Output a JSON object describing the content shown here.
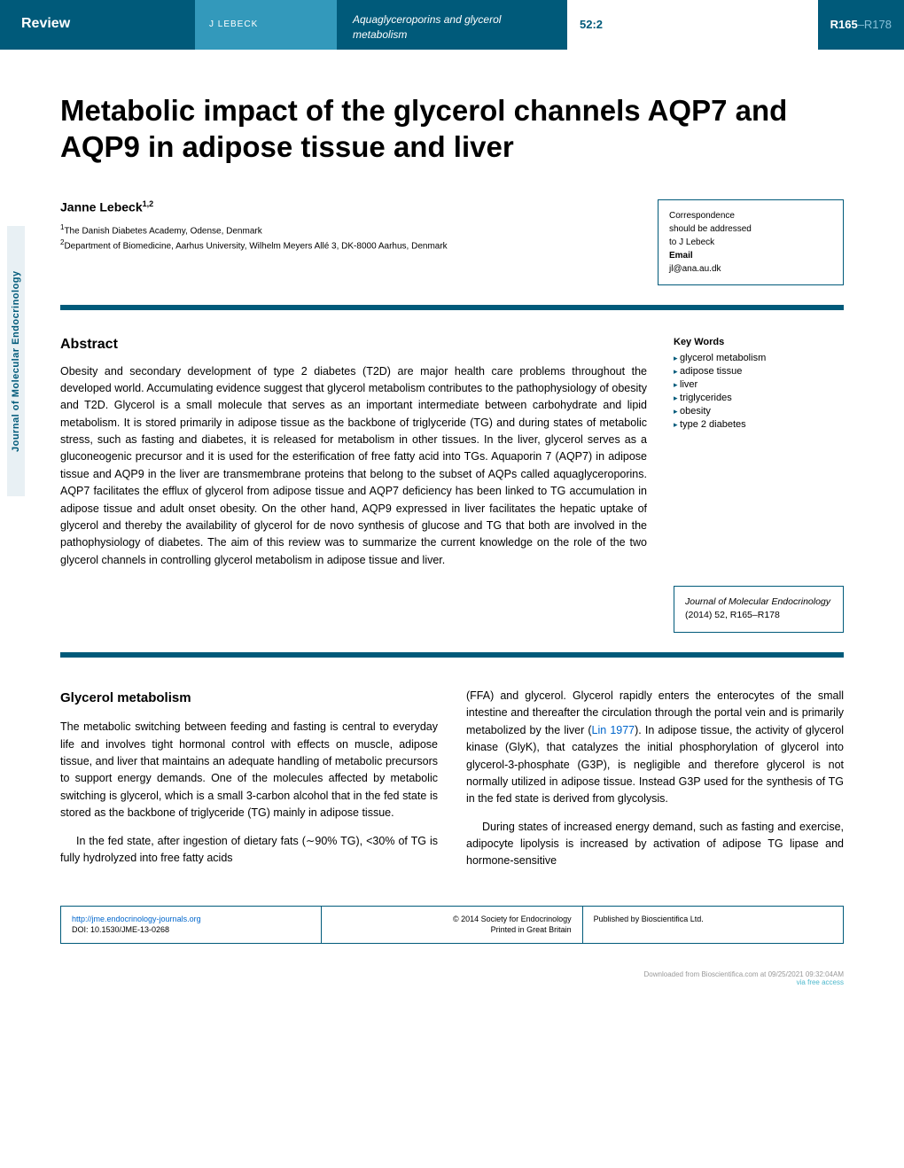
{
  "header": {
    "review_label": "Review",
    "author_short": "J LEBECK",
    "running_title": "Aquaglyceroporins and glycerol metabolism",
    "volume": "52:2",
    "page_range_bold": "R165",
    "page_range_light": "–R178"
  },
  "article": {
    "title": "Metabolic impact of the glycerol channels AQP7 and AQP9 in adipose tissue and liver",
    "author": "Janne Lebeck",
    "author_sup": "1,2",
    "affiliations": [
      {
        "num": "1",
        "text": "The Danish Diabetes Academy, Odense, Denmark"
      },
      {
        "num": "2",
        "text": "Department of Biomedicine, Aarhus University, Wilhelm Meyers Allé 3, DK-8000 Aarhus, Denmark"
      }
    ]
  },
  "correspondence": {
    "line1": "Correspondence",
    "line2": "should be addressed",
    "line3": "to J Lebeck",
    "email_label": "Email",
    "email": "jl@ana.au.dk"
  },
  "abstract": {
    "heading": "Abstract",
    "text": "Obesity and secondary development of type 2 diabetes (T2D) are major health care problems throughout the developed world. Accumulating evidence suggest that glycerol metabolism contributes to the pathophysiology of obesity and T2D. Glycerol is a small molecule that serves as an important intermediate between carbohydrate and lipid metabolism. It is stored primarily in adipose tissue as the backbone of triglyceride (TG) and during states of metabolic stress, such as fasting and diabetes, it is released for metabolism in other tissues. In the liver, glycerol serves as a gluconeogenic precursor and it is used for the esterification of free fatty acid into TGs. Aquaporin 7 (AQP7) in adipose tissue and AQP9 in the liver are transmembrane proteins that belong to the subset of AQPs called aquaglyceroporins. AQP7 facilitates the efflux of glycerol from adipose tissue and AQP7 deficiency has been linked to TG accumulation in adipose tissue and adult onset obesity. On the other hand, AQP9 expressed in liver facilitates the hepatic uptake of glycerol and thereby the availability of glycerol for de novo synthesis of glucose and TG that both are involved in the pathophysiology of diabetes. The aim of this review was to summarize the current knowledge on the role of the two glycerol channels in controlling glycerol metabolism in adipose tissue and liver."
  },
  "keywords": {
    "heading": "Key Words",
    "items": [
      "glycerol metabolism",
      "adipose tissue",
      "liver",
      "triglycerides",
      "obesity",
      "type 2 diabetes"
    ]
  },
  "citation": {
    "journal": "Journal of Molecular Endocrinology",
    "year_vol": "(2014) 52,",
    "pages": "R165–R178"
  },
  "vertical_label": "Journal of Molecular Endocrinology",
  "body": {
    "heading": "Glycerol metabolism",
    "col1_p1": "The metabolic switching between feeding and fasting is central to everyday life and involves tight hormonal control with effects on muscle, adipose tissue, and liver that maintains an adequate handling of metabolic precursors to support energy demands. One of the molecules affected by metabolic switching is glycerol, which is a small 3-carbon alcohol that in the fed state is stored as the backbone of triglyceride (TG) mainly in adipose tissue.",
    "col1_p2": "In the fed state, after ingestion of dietary fats (∼90% TG), <30% of TG is fully hydrolyzed into free fatty acids",
    "col2_p1_a": "(FFA) and glycerol. Glycerol rapidly enters the enterocytes of the small intestine and thereafter the circulation through the portal vein and is primarily metabolized by the liver (",
    "col2_ref": "Lin 1977",
    "col2_p1_b": "). In adipose tissue, the activity of glycerol kinase (GlyK), that catalyzes the initial phosphorylation of glycerol into glycerol-3-phosphate (G3P), is negligible and therefore glycerol is not normally utilized in adipose tissue. Instead G3P used for the synthesis of TG in the fed state is derived from glycolysis.",
    "col2_p2": "During states of increased energy demand, such as fasting and exercise, adipocyte lipolysis is increased by activation of adipose TG lipase and hormone-sensitive"
  },
  "footer": {
    "url": "http://jme.endocrinology-journals.org",
    "doi": "DOI: 10.1530/JME-13-0268",
    "copyright": "© 2014 Society for Endocrinology",
    "printed": "Printed in Great Britain",
    "published": "Published by Bioscientifica Ltd."
  },
  "download": {
    "line1": "Downloaded from Bioscientifica.com at 09/25/2021 09:32:04AM",
    "line2": "via free access"
  },
  "colors": {
    "primary": "#005a7a",
    "secondary": "#3399bb",
    "link": "#0066cc",
    "access": "#4db8cc"
  }
}
